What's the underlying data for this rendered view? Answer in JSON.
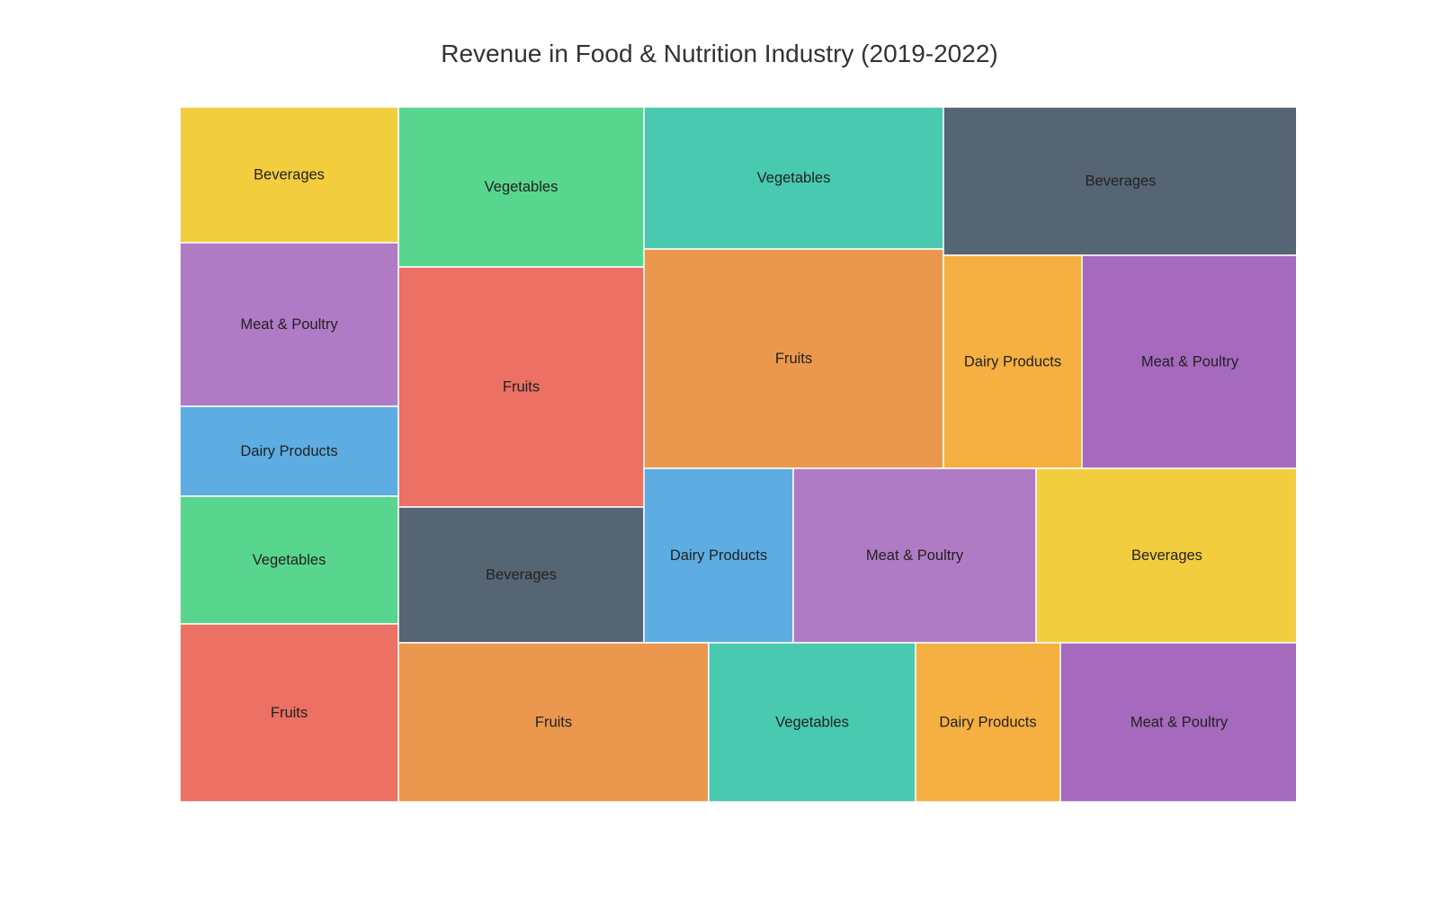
{
  "chart_data": {
    "type": "treemap",
    "title": "Revenue in Food & Nutrition Industry (2019-2022)",
    "tiles": [
      {
        "label": "Beverages",
        "value": 5.9,
        "color": "#f2ce3f"
      },
      {
        "label": "Meat & Poultry",
        "value": 7.2,
        "color": "#af7bc4"
      },
      {
        "label": "Dairy Products",
        "value": 3.9,
        "color": "#5dade2"
      },
      {
        "label": "Vegetables",
        "value": 5.6,
        "color": "#58d68d"
      },
      {
        "label": "Fruits",
        "value": 7.8,
        "color": "#ec7063"
      },
      {
        "label": "Vegetables",
        "value": 7.8,
        "color": "#58d68d"
      },
      {
        "label": "Fruits",
        "value": 11.7,
        "color": "#ec7063"
      },
      {
        "label": "Beverages",
        "value": 6.6,
        "color": "#566573"
      },
      {
        "label": "Vegetables",
        "value": 8.4,
        "color": "#48c9b0"
      },
      {
        "label": "Fruits",
        "value": 12.9,
        "color": "#eb984e"
      },
      {
        "label": "Beverages",
        "value": 10.3,
        "color": "#566573"
      },
      {
        "label": "Dairy Products",
        "value": 5.8,
        "color": "#f5b041"
      },
      {
        "label": "Meat & Poultry",
        "value": 9.0,
        "color": "#a569bd"
      },
      {
        "label": "Dairy Products",
        "value": 5.1,
        "color": "#5dade2"
      },
      {
        "label": "Meat & Poultry",
        "value": 8.4,
        "color": "#af7bc4"
      },
      {
        "label": "Beverages",
        "value": 9.1,
        "color": "#f2ce3f"
      },
      {
        "label": "Fruits",
        "value": 9.6,
        "color": "#eb984e"
      },
      {
        "label": "Vegetables",
        "value": 6.4,
        "color": "#48c9b0"
      },
      {
        "label": "Dairy Products",
        "value": 4.5,
        "color": "#f5b041"
      },
      {
        "label": "Meat & Poultry",
        "value": 7.4,
        "color": "#a569bd"
      }
    ]
  }
}
